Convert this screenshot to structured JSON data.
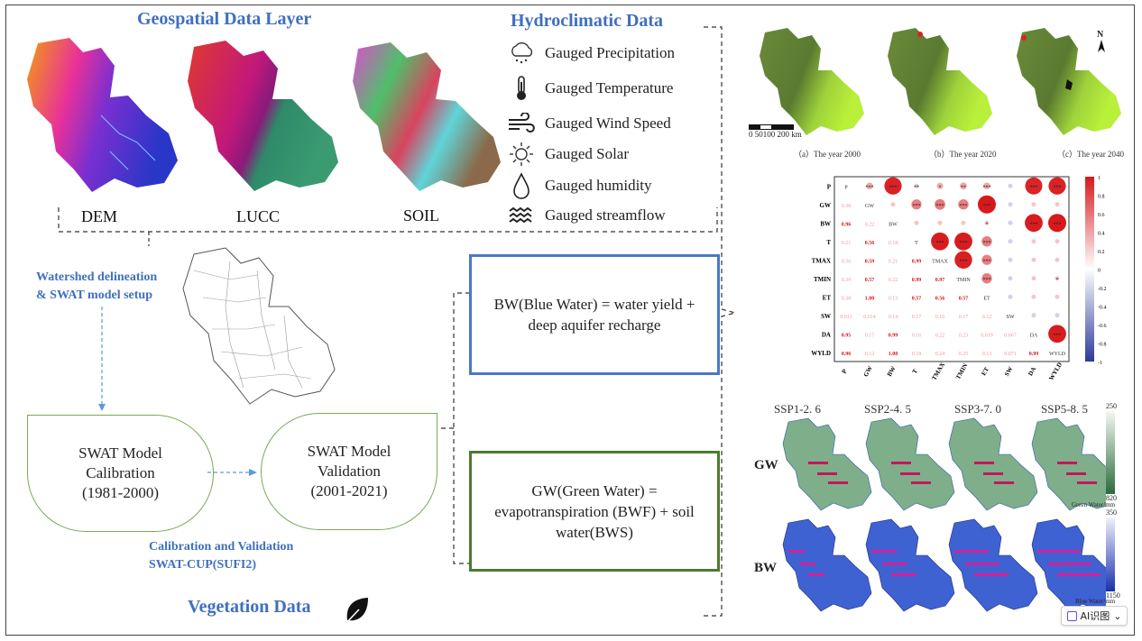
{
  "geo": {
    "title": "Geospatial Data Layer",
    "maps": [
      {
        "label": "DEM"
      },
      {
        "label": "LUCC"
      },
      {
        "label": "SOIL"
      }
    ]
  },
  "hydro": {
    "title": "Hydroclimatic Data",
    "items": [
      {
        "label": "Gauged Precipitation",
        "icon": "cloud-rain-icon"
      },
      {
        "label": "Gauged Temperature",
        "icon": "thermometer-icon"
      },
      {
        "label": "Gauged Wind Speed",
        "icon": "wind-icon"
      },
      {
        "label": "Gauged Solar",
        "icon": "sun-icon"
      },
      {
        "label": "Gauged humidity",
        "icon": "droplet-icon"
      },
      {
        "label": "Gauged streamflow",
        "icon": "waves-icon"
      }
    ]
  },
  "workflow": {
    "delineation_line1": "Watershed delineation",
    "delineation_line2": "& SWAT model setup",
    "calibration_line1": "SWAT Model",
    "calibration_line2": "Calibration",
    "calibration_line3": "(1981-2000)",
    "validation_line1": "SWAT Model",
    "validation_line2": "Validation",
    "validation_line3": "(2001-2021)",
    "calval_line1": "Calibration and Validation",
    "calval_line2": "SWAT-CUP(SUFI2)",
    "vegetation": "Vegetation Data"
  },
  "equations": {
    "bw_line1": "BW(Blue Water) = water yield +",
    "bw_line2": "deep aquifer recharge",
    "gw_line1": "GW(Green Water) =",
    "gw_line2": "evapotranspiration (BWF) + soil",
    "gw_line3": "water(BWS)"
  },
  "landuse": {
    "captions": [
      "（a）The year 2000",
      "（b）The year 2020",
      "（c）The year 2040"
    ],
    "scale_text": "0  50100   200",
    "scale_unit": "km",
    "north": "N"
  },
  "correlation": {
    "variables": [
      "P",
      "GW",
      "BW",
      "T",
      "TMAX",
      "TMIN",
      "ET",
      "SW",
      "DA",
      "WYLD"
    ],
    "lower_values": [
      [
        "0.38"
      ],
      [
        "0.96",
        "0.22"
      ],
      [
        "0.21",
        "0.56",
        "0.18"
      ],
      [
        "0.36",
        "0.59",
        "0.21",
        "0.99"
      ],
      [
        "0.39",
        "0.57",
        "0.22",
        "0.99",
        "0.97"
      ],
      [
        "0.38",
        "1.00",
        "0.13",
        "0.57",
        "0.56",
        "0.57"
      ],
      [
        "0.013",
        "0.014",
        "0.14",
        "0.17",
        "0.16",
        "0.17",
        "0.12"
      ],
      [
        "0.95",
        "0.17",
        "0.99",
        "0.16",
        "0.22",
        "0.23",
        "0.019",
        "0.067"
      ],
      [
        "0.96",
        "0.12",
        "1.00",
        "0.18",
        "0.24",
        "0.25",
        "0.13",
        "0.071",
        "0.99"
      ]
    ],
    "upper_stars": [
      [
        "***",
        "***",
        "**",
        "*",
        "**",
        "***",
        "",
        "***",
        "***"
      ],
      [
        "",
        "***",
        "***",
        "***",
        "***",
        "",
        "",
        ""
      ],
      [
        "",
        "",
        "",
        "*",
        "",
        "***",
        "***"
      ],
      [
        "***",
        "***",
        "***",
        "",
        "",
        ""
      ],
      [
        "***",
        "***",
        "",
        "",
        ""
      ],
      [
        "***",
        "",
        "",
        "*"
      ],
      [
        "",
        "",
        ""
      ],
      [
        "",
        ""
      ],
      [
        "***"
      ]
    ],
    "legend_ticks": [
      "1",
      "0.8",
      "0.6",
      "0.4",
      "0.2",
      "0",
      "-0.2",
      "-0.4",
      "-0.6",
      "-0.8",
      "-1"
    ],
    "colors": {
      "positive": "#d7191c",
      "negative": "#2b3a99"
    }
  },
  "scenarios": {
    "labels": [
      "SSP1-2. 6",
      "SSP2-4. 5",
      "SSP3-7. 0",
      "SSP5-8. 5"
    ],
    "gw_row_label": "GW",
    "bw_row_label": "BW",
    "gw_legend_top": "250",
    "gw_legend_bottom": "820",
    "gw_legend_title": "Green Water/mm",
    "bw_legend_top": "350",
    "bw_legend_bottom": "1150",
    "bw_legend_title": "Blue Water/mm"
  },
  "ai_button": {
    "label": "AI识图",
    "chevron": "⌄"
  },
  "colors": {
    "title_blue": "#3f6fc0",
    "leaf_green": "#7aaa52",
    "bw_border": "#4a78c8",
    "gw_border": "#4b7b2f"
  }
}
